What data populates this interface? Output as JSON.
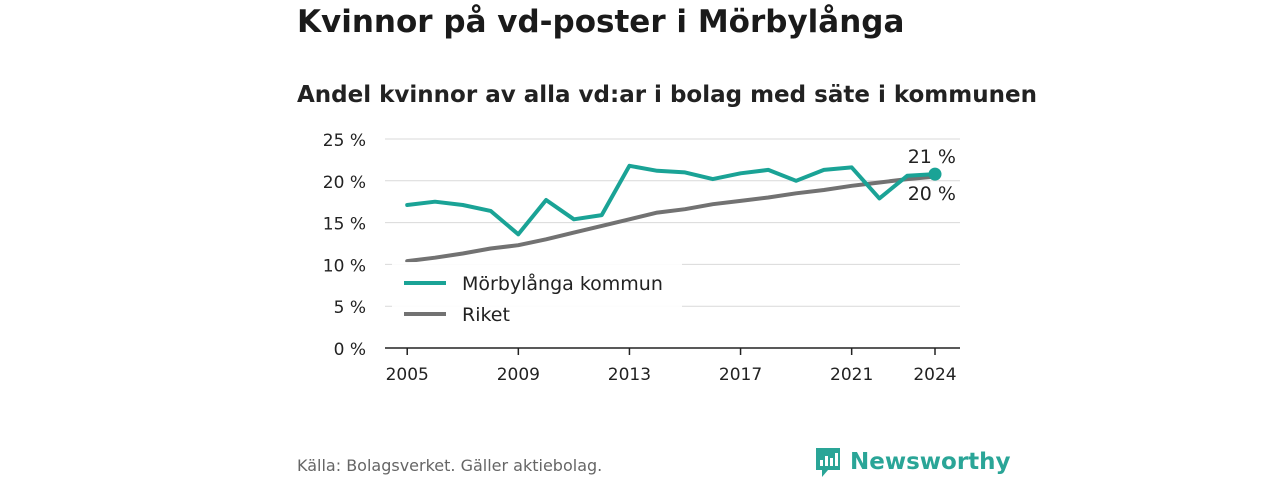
{
  "title": "Kvinnor på vd-poster i Mörbylånga",
  "subtitle": "Andel kvinnor av alla vd:ar i bolag med säte i kommunen",
  "source": "Källa: Bolagsverket. Gäller aktiebolag.",
  "brand": "Newsworthy",
  "colors": {
    "primary": "#1aa396",
    "secondary": "#727272",
    "brand": "#2aa597"
  },
  "chart_data": {
    "type": "line",
    "title": "Kvinnor på vd-poster i Mörbylånga",
    "subtitle": "Andel kvinnor av alla vd:ar i bolag med säte i kommunen",
    "xlabel": "",
    "ylabel": "",
    "x": [
      2005,
      2006,
      2007,
      2008,
      2009,
      2010,
      2011,
      2012,
      2013,
      2014,
      2015,
      2016,
      2017,
      2018,
      2019,
      2020,
      2021,
      2022,
      2023,
      2024
    ],
    "xticks": [
      2005,
      2009,
      2013,
      2017,
      2021,
      2024
    ],
    "xlim": [
      2004.2,
      2024.9
    ],
    "ylim": [
      0,
      25
    ],
    "yticks": [
      {
        "value": 0,
        "label": "0 %"
      },
      {
        "value": 5,
        "label": "5 %"
      },
      {
        "value": 10,
        "label": "10 %"
      },
      {
        "value": 15,
        "label": "15 %"
      },
      {
        "value": 20,
        "label": "20 %"
      },
      {
        "value": 25,
        "label": "25 %"
      }
    ],
    "grid": true,
    "legend_position": "left",
    "series": [
      {
        "name": "Mörbylånga kommun",
        "color": "#1aa396",
        "values": [
          17.1,
          17.5,
          17.1,
          16.4,
          13.6,
          17.7,
          15.4,
          15.9,
          21.8,
          21.2,
          21.0,
          20.2,
          20.9,
          21.3,
          20.0,
          21.3,
          21.6,
          17.9,
          20.6,
          20.8
        ],
        "end_label": "21 %"
      },
      {
        "name": "Riket",
        "color": "#727272",
        "values": [
          10.4,
          10.8,
          11.3,
          11.9,
          12.3,
          13.0,
          13.8,
          14.6,
          15.4,
          16.2,
          16.6,
          17.2,
          17.6,
          18.0,
          18.5,
          18.9,
          19.4,
          19.8,
          20.2,
          20.5
        ],
        "end_label": "20 %"
      }
    ]
  }
}
